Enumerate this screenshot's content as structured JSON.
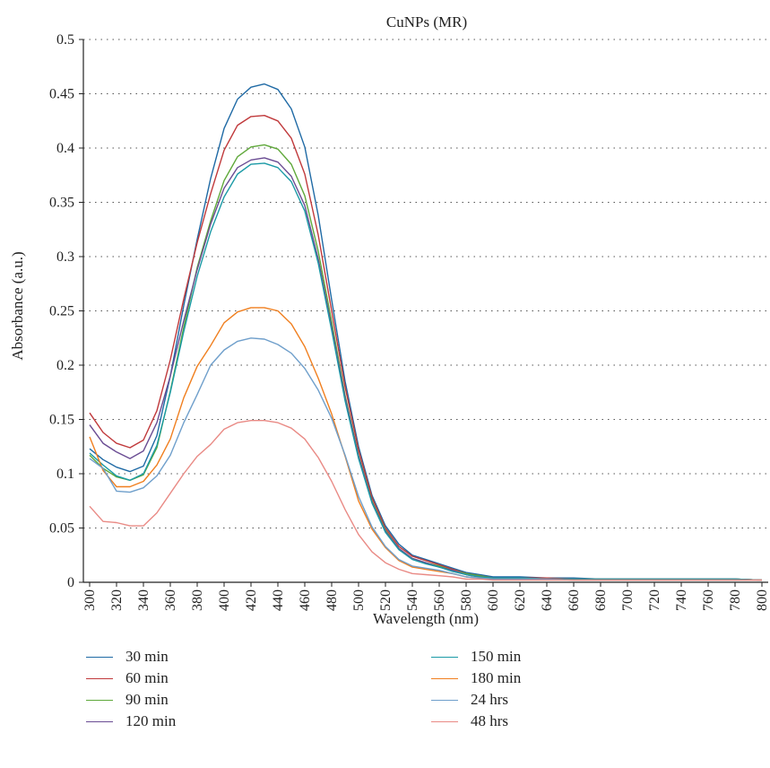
{
  "chart_data": {
    "type": "line",
    "title": "CuNPs (MR)",
    "xlabel": "Wavelength (nm)",
    "ylabel": "Absorbance (a.u.)",
    "xlim": [
      300,
      800
    ],
    "ylim": [
      0,
      0.5
    ],
    "x_ticks": [
      300,
      320,
      340,
      360,
      380,
      400,
      420,
      440,
      460,
      480,
      500,
      520,
      540,
      560,
      580,
      600,
      620,
      640,
      660,
      680,
      700,
      720,
      740,
      760,
      780,
      800
    ],
    "y_ticks": [
      0,
      0.05,
      0.1,
      0.15,
      0.2,
      0.25,
      0.3,
      0.35,
      0.4,
      0.45,
      0.5
    ],
    "y_tick_labels": [
      "0",
      "0.05",
      "0.1",
      "0.15",
      "0.2",
      "0.25",
      "0.3",
      "0.35",
      "0.4",
      "0.45",
      "0.5"
    ],
    "grid": "horizontal dotted",
    "legend_position": "bottom",
    "x": [
      300,
      310,
      320,
      330,
      340,
      350,
      360,
      370,
      380,
      390,
      400,
      410,
      420,
      430,
      440,
      450,
      460,
      470,
      480,
      490,
      500,
      510,
      520,
      530,
      540,
      550,
      560,
      570,
      580,
      590,
      600,
      620,
      640,
      660,
      680,
      700,
      720,
      740,
      760,
      780,
      800
    ],
    "series": [
      {
        "name": "30 min",
        "color": "#1f6aa5",
        "values": [
          0.123,
          0.113,
          0.106,
          0.102,
          0.107,
          0.135,
          0.19,
          0.255,
          0.316,
          0.372,
          0.418,
          0.445,
          0.456,
          0.459,
          0.454,
          0.436,
          0.401,
          0.338,
          0.26,
          0.185,
          0.125,
          0.08,
          0.052,
          0.035,
          0.025,
          0.021,
          0.017,
          0.013,
          0.009,
          0.007,
          0.005,
          0.005,
          0.004,
          0.004,
          0.003,
          0.003,
          0.003,
          0.003,
          0.003,
          0.003,
          0.002
        ]
      },
      {
        "name": "60 min",
        "color": "#c0393b",
        "values": [
          0.156,
          0.138,
          0.128,
          0.124,
          0.131,
          0.158,
          0.205,
          0.261,
          0.313,
          0.358,
          0.398,
          0.421,
          0.429,
          0.43,
          0.425,
          0.409,
          0.376,
          0.32,
          0.25,
          0.18,
          0.122,
          0.078,
          0.05,
          0.033,
          0.024,
          0.02,
          0.016,
          0.012,
          0.008,
          0.006,
          0.004,
          0.004,
          0.004,
          0.003,
          0.003,
          0.003,
          0.003,
          0.003,
          0.003,
          0.003,
          0.002
        ]
      },
      {
        "name": "90 min",
        "color": "#5fa83a",
        "values": [
          0.117,
          0.105,
          0.097,
          0.094,
          0.099,
          0.124,
          0.176,
          0.235,
          0.29,
          0.333,
          0.37,
          0.392,
          0.401,
          0.403,
          0.399,
          0.385,
          0.356,
          0.305,
          0.24,
          0.172,
          0.117,
          0.075,
          0.048,
          0.031,
          0.022,
          0.018,
          0.015,
          0.011,
          0.008,
          0.006,
          0.004,
          0.004,
          0.003,
          0.003,
          0.003,
          0.003,
          0.003,
          0.003,
          0.003,
          0.003,
          0.002
        ]
      },
      {
        "name": "120 min",
        "color": "#6a4c93",
        "values": [
          0.145,
          0.128,
          0.12,
          0.114,
          0.121,
          0.147,
          0.19,
          0.241,
          0.288,
          0.33,
          0.363,
          0.382,
          0.389,
          0.391,
          0.387,
          0.374,
          0.347,
          0.298,
          0.235,
          0.17,
          0.116,
          0.074,
          0.047,
          0.031,
          0.022,
          0.018,
          0.014,
          0.011,
          0.007,
          0.005,
          0.004,
          0.004,
          0.003,
          0.003,
          0.003,
          0.003,
          0.003,
          0.003,
          0.003,
          0.003,
          0.002
        ]
      },
      {
        "name": "150 min",
        "color": "#1b9aa6",
        "values": [
          0.119,
          0.108,
          0.098,
          0.094,
          0.1,
          0.126,
          0.175,
          0.231,
          0.282,
          0.323,
          0.355,
          0.376,
          0.385,
          0.386,
          0.382,
          0.369,
          0.342,
          0.294,
          0.232,
          0.167,
          0.114,
          0.073,
          0.046,
          0.03,
          0.021,
          0.017,
          0.014,
          0.01,
          0.007,
          0.005,
          0.004,
          0.004,
          0.003,
          0.003,
          0.003,
          0.003,
          0.003,
          0.003,
          0.003,
          0.003,
          0.002
        ]
      },
      {
        "name": "180 min",
        "color": "#f07f1f",
        "values": [
          0.134,
          0.103,
          0.088,
          0.088,
          0.093,
          0.108,
          0.132,
          0.17,
          0.199,
          0.218,
          0.239,
          0.249,
          0.253,
          0.253,
          0.25,
          0.238,
          0.217,
          0.188,
          0.155,
          0.116,
          0.075,
          0.049,
          0.032,
          0.02,
          0.014,
          0.012,
          0.01,
          0.008,
          0.005,
          0.004,
          0.003,
          0.003,
          0.003,
          0.002,
          0.002,
          0.002,
          0.002,
          0.002,
          0.002,
          0.002,
          0.002
        ]
      },
      {
        "name": "24 hrs",
        "color": "#6f9fcb",
        "values": [
          0.114,
          0.105,
          0.084,
          0.083,
          0.087,
          0.098,
          0.117,
          0.147,
          0.173,
          0.2,
          0.214,
          0.222,
          0.225,
          0.224,
          0.219,
          0.211,
          0.197,
          0.177,
          0.151,
          0.117,
          0.079,
          0.051,
          0.033,
          0.021,
          0.015,
          0.013,
          0.011,
          0.008,
          0.005,
          0.004,
          0.003,
          0.003,
          0.003,
          0.002,
          0.002,
          0.002,
          0.002,
          0.002,
          0.002,
          0.002,
          0.002
        ]
      },
      {
        "name": "48 hrs",
        "color": "#e98a85",
        "values": [
          0.07,
          0.056,
          0.055,
          0.052,
          0.052,
          0.064,
          0.082,
          0.1,
          0.116,
          0.127,
          0.141,
          0.147,
          0.149,
          0.149,
          0.147,
          0.142,
          0.132,
          0.115,
          0.093,
          0.067,
          0.044,
          0.028,
          0.018,
          0.012,
          0.008,
          0.007,
          0.006,
          0.005,
          0.003,
          0.003,
          0.002,
          0.002,
          0.002,
          0.002,
          0.002,
          0.002,
          0.002,
          0.002,
          0.002,
          0.002,
          0.002
        ]
      }
    ]
  }
}
